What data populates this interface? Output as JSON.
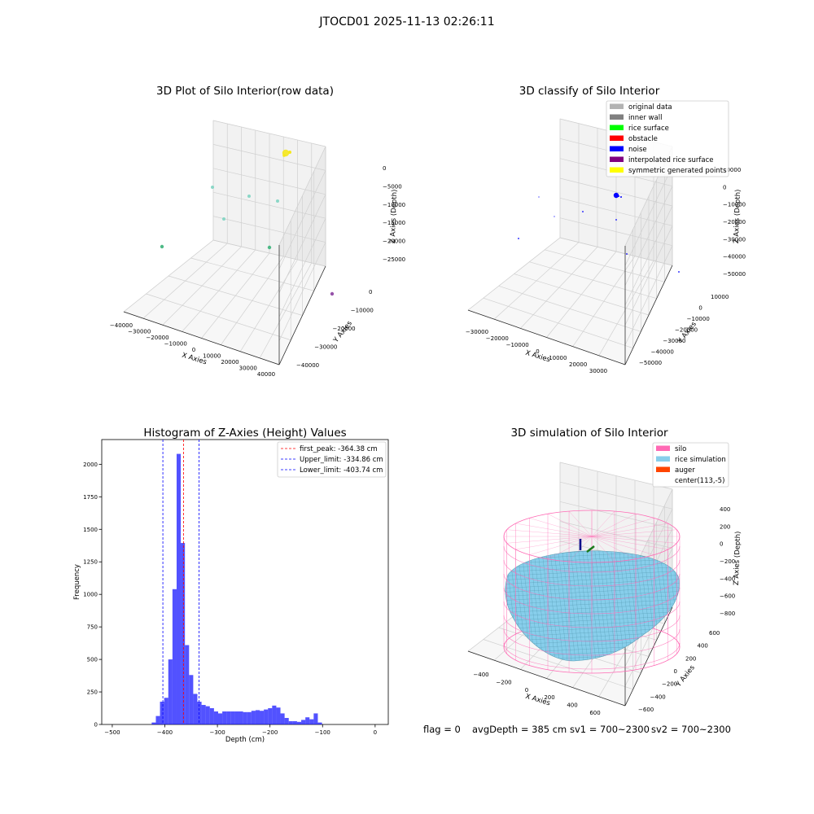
{
  "suptitle": "JTOCD01 2025-11-13 02:26:11",
  "footer": {
    "flag": "flag = 0",
    "avg_depth": "avgDepth = 385 cm",
    "sv1": "sv1 = 700~2300",
    "sv2": "sv2 = 700~2300"
  },
  "chart_data": [
    {
      "type": "scatter",
      "dimension": "3d",
      "title": "3D Plot of Silo Interior(row data)",
      "xlabel": "X Axies",
      "ylabel": "Y Axies",
      "zlabel": "Z Axies (Depth)",
      "x_ticks": [
        "−40000",
        "−30000",
        "−20000",
        "−10000",
        "0",
        "10000",
        "20000",
        "30000",
        "40000"
      ],
      "y_ticks": [
        "0",
        "−10000",
        "−20000",
        "−30000",
        "−40000"
      ],
      "z_ticks": [
        "0",
        "−5000",
        "−10000",
        "−15000",
        "−20000",
        "−25000"
      ],
      "points_colormap": "viridis",
      "points": [
        {
          "label": "main cluster",
          "color": "#f5e71d"
        },
        {
          "label": "p1",
          "color": "#7fd4c2"
        },
        {
          "label": "p2",
          "color": "#7fd4c2"
        },
        {
          "label": "p3",
          "color": "#7fd4c2"
        },
        {
          "label": "p4",
          "color": "#7fd4c2"
        },
        {
          "label": "p5",
          "color": "#3bb37a"
        },
        {
          "label": "p6",
          "color": "#3bb37a"
        },
        {
          "label": "p7",
          "color": "#8b3fa0"
        }
      ]
    },
    {
      "type": "scatter",
      "dimension": "3d",
      "title": "3D classify of Silo Interior",
      "xlabel": "X Axies",
      "ylabel": "Y Axies",
      "zlabel": "Z Axies (Depth)",
      "x_ticks": [
        "−30000",
        "−20000",
        "−10000",
        "0",
        "10000",
        "20000",
        "30000"
      ],
      "y_ticks": [
        "10000",
        "0",
        "−10000",
        "−20000",
        "−30000",
        "−40000",
        "−50000"
      ],
      "z_ticks": [
        "10000",
        "0",
        "−10000",
        "−20000",
        "−30000",
        "−40000",
        "−50000"
      ],
      "legend_position": "top-right",
      "legend": [
        {
          "label": "original data",
          "color": "#b3b3b3"
        },
        {
          "label": "inner wall",
          "color": "#808080"
        },
        {
          "label": "rice surface",
          "color": "#00ff00"
        },
        {
          "label": "obstacle",
          "color": "#ff0000"
        },
        {
          "label": "noise",
          "color": "#0000ff"
        },
        {
          "label": "interpolated rice surface",
          "color": "#800080"
        },
        {
          "label": "symmetric generated points",
          "color": "#ffff00"
        }
      ]
    },
    {
      "type": "bar",
      "subtype": "histogram",
      "title": "Histogram of Z-Axies (Height) Values",
      "xlabel": "Depth (cm)",
      "ylabel": "Frequency",
      "xlim": [
        -520,
        25
      ],
      "ylim": [
        0,
        2190
      ],
      "x_ticks": [
        "−500",
        "−400",
        "−300",
        "−200",
        "−100",
        "0"
      ],
      "y_ticks": [
        "0",
        "250",
        "500",
        "750",
        "1000",
        "1250",
        "1500",
        "1750",
        "2000"
      ],
      "bar_color": "#0000ff",
      "bin_start": -425,
      "bin_width": 7.9,
      "values": [
        15,
        65,
        175,
        205,
        500,
        1040,
        2080,
        1395,
        610,
        380,
        235,
        175,
        150,
        140,
        125,
        100,
        85,
        100,
        100,
        100,
        100,
        100,
        95,
        95,
        105,
        110,
        105,
        115,
        125,
        145,
        130,
        85,
        50,
        25,
        25,
        20,
        35,
        55,
        40,
        85,
        15
      ],
      "lines": [
        {
          "label": "first_peak: -364.38 cm",
          "x": -364.38,
          "color": "#ff0000"
        },
        {
          "label": "Upper_limit: -334.86 cm",
          "x": -334.86,
          "color": "#0000ff"
        },
        {
          "label": "Lower_limit: -403.74 cm",
          "x": -403.74,
          "color": "#0000ff"
        }
      ],
      "legend_position": "top-right"
    },
    {
      "type": "area",
      "dimension": "3d",
      "title": "3D simulation of Silo Interior",
      "xlabel": "X Axies",
      "ylabel": "Y Axies",
      "zlabel": "Z Axies (Depth)",
      "x_ticks": [
        "−400",
        "−200",
        "0",
        "200",
        "400",
        "600"
      ],
      "y_ticks": [
        "600",
        "400",
        "200",
        "0",
        "−200",
        "−400",
        "−600"
      ],
      "z_ticks": [
        "400",
        "200",
        "0",
        "−200",
        "−400",
        "−600",
        "−800"
      ],
      "legend_position": "top-right",
      "legend": [
        {
          "label": "silo",
          "color": "#ff69b4"
        },
        {
          "label": "rice simulation",
          "color": "#87ceeb"
        },
        {
          "label": "auger",
          "color": "#ff4500"
        },
        {
          "label": "center(113,-5)",
          "color": ""
        }
      ]
    }
  ]
}
